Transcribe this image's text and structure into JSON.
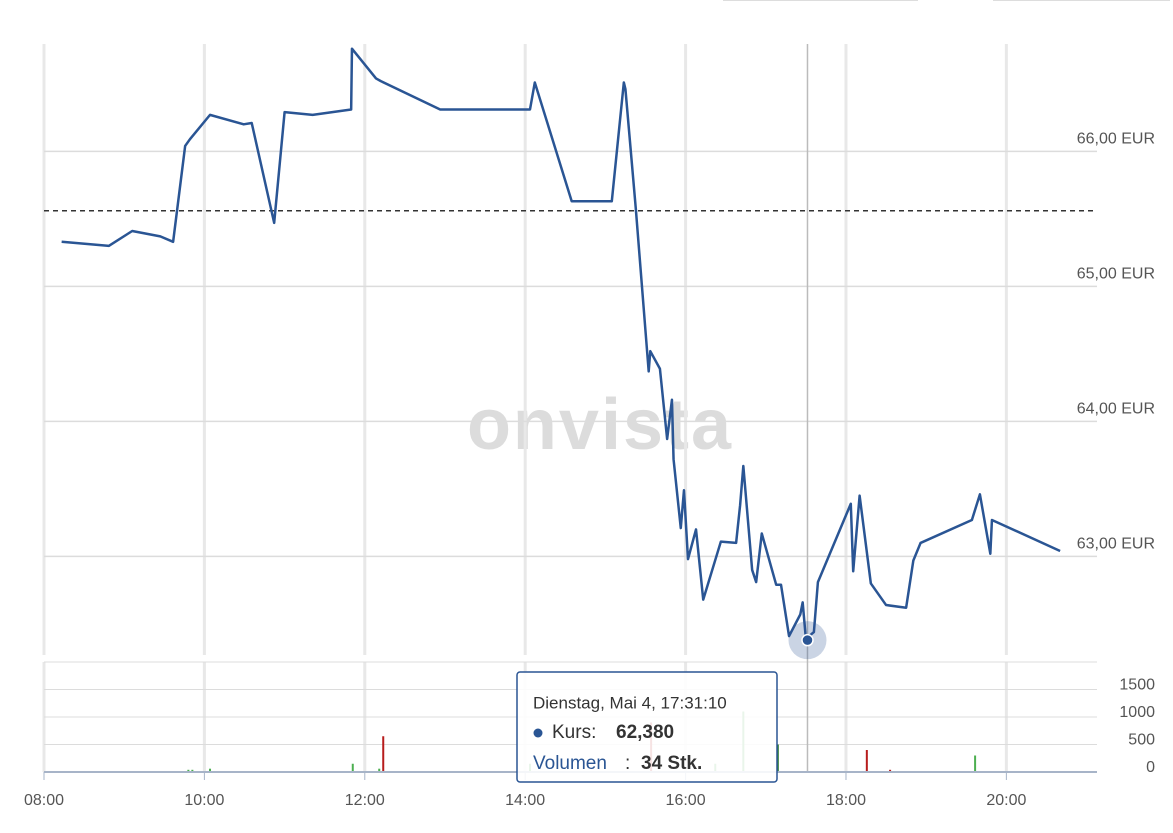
{
  "watermark": "onvista",
  "chart_data": [
    {
      "type": "line",
      "xlim": [
        8,
        21.13
      ],
      "ylim": [
        62.27,
        66.78
      ],
      "yticks": [
        {
          "value": 63,
          "label": "63,00 EUR"
        },
        {
          "value": 64,
          "label": "64,00 EUR"
        },
        {
          "value": 65,
          "label": "65,00 EUR"
        },
        {
          "value": 66,
          "label": "66,00 EUR"
        }
      ],
      "reference_line": 65.56,
      "x": [
        8.22,
        8.81,
        9.1,
        9.45,
        9.61,
        9.76,
        9.82,
        10.07,
        10.49,
        10.59,
        10.87,
        11.0,
        11.35,
        11.83,
        11.84,
        12.14,
        12.2,
        12.94,
        14.06,
        14.12,
        14.58,
        15.08,
        15.23,
        15.25,
        15.38,
        15.54,
        15.56,
        15.68,
        15.77,
        15.83,
        15.85,
        15.94,
        15.98,
        16.03,
        16.13,
        16.22,
        16.44,
        16.63,
        16.68,
        16.72,
        16.83,
        16.88,
        16.95,
        17.13,
        17.19,
        17.29,
        17.43,
        17.46,
        17.5,
        17.6,
        17.65,
        18.06,
        18.09,
        18.17,
        18.31,
        18.5,
        18.75,
        18.84,
        18.93,
        19.57,
        19.67,
        19.8,
        19.82,
        20.67
      ],
      "series": [
        {
          "color": "#2a5594",
          "values": [
            65.33,
            65.3,
            65.41,
            65.37,
            65.33,
            66.04,
            66.09,
            66.27,
            66.2,
            66.21,
            65.47,
            66.29,
            66.27,
            66.31,
            66.76,
            66.54,
            66.52,
            66.31,
            66.31,
            66.51,
            65.63,
            65.63,
            66.51,
            66.46,
            65.57,
            64.37,
            64.52,
            64.39,
            63.87,
            64.16,
            63.72,
            63.21,
            63.49,
            62.98,
            63.2,
            62.68,
            63.11,
            63.1,
            63.38,
            63.67,
            62.9,
            62.81,
            63.17,
            62.79,
            62.79,
            62.41,
            62.57,
            62.66,
            62.39,
            62.44,
            62.81,
            63.39,
            62.89,
            63.45,
            62.8,
            62.64,
            62.62,
            62.97,
            63.1,
            63.27,
            63.46,
            63.02,
            63.27,
            63.04
          ]
        }
      ],
      "tooltip": {
        "x": 17.52,
        "header": "Dienstag, Mai 4, 17:31:10",
        "price_name": "Kurs:",
        "price": {
          "value": 62.38,
          "label": "62,380"
        },
        "volume_name": "Volumen",
        "volume_sep": ":",
        "volume": {
          "value": 34,
          "label": "34 Stk."
        }
      }
    },
    {
      "type": "bar",
      "xlim": [
        8,
        21.13
      ],
      "ylim": [
        0,
        2000
      ],
      "yticks": [
        0,
        500,
        1000,
        1500
      ],
      "xticks": [
        {
          "value": 8,
          "label": "08:00"
        },
        {
          "value": 10,
          "label": "10:00"
        },
        {
          "value": 12,
          "label": "12:00"
        },
        {
          "value": 14,
          "label": "14:00"
        },
        {
          "value": 16,
          "label": "16:00"
        },
        {
          "value": 18,
          "label": "18:00"
        },
        {
          "value": 20,
          "label": "20:00"
        }
      ],
      "x": [
        9.8,
        9.85,
        10.07,
        11.85,
        12.18,
        12.23,
        14.06,
        15.57,
        16.37,
        16.72,
        17.15,
        18.26,
        18.55,
        19.61
      ],
      "values": [
        40,
        40,
        60,
        150,
        60,
        650,
        150,
        900,
        150,
        1100,
        500,
        400,
        40,
        300
      ],
      "colors": [
        "#4caf50",
        "#4caf50",
        "#4caf50",
        "#4caf50",
        "#4caf50",
        "#b71c1c",
        "#4caf50",
        "#b71c1c",
        "#4caf50",
        "#4caf50",
        "#2e7d32",
        "#b71c1c",
        "#b71c1c",
        "#4caf50"
      ]
    }
  ]
}
